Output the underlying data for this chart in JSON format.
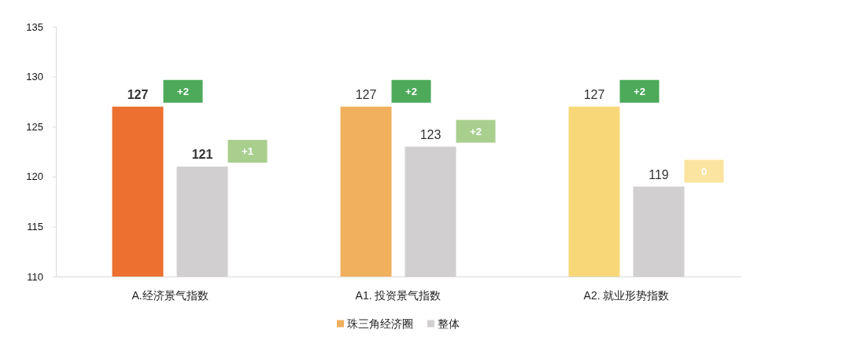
{
  "chart_data": {
    "type": "bar",
    "categories": [
      "A.经济景气指数",
      "A1. 投资景气指数",
      "A2. 就业形势指数"
    ],
    "series": [
      {
        "name": "珠三角经济圈",
        "color": "#f0b05e",
        "colors": [
          "#ec7030",
          "#f0b05e",
          "#f8d778"
        ],
        "values": [
          127,
          127,
          127
        ]
      },
      {
        "name": "整体",
        "color": "#d1cfd0",
        "values": [
          121,
          123,
          119
        ]
      }
    ],
    "ylim": [
      110,
      135
    ],
    "yticks": [
      110,
      115,
      120,
      125,
      130,
      135
    ],
    "data_labels": true,
    "legend": "bottom",
    "annotations": [
      "+2",
      "+1",
      "+2",
      "+2",
      "+2",
      "0"
    ]
  }
}
